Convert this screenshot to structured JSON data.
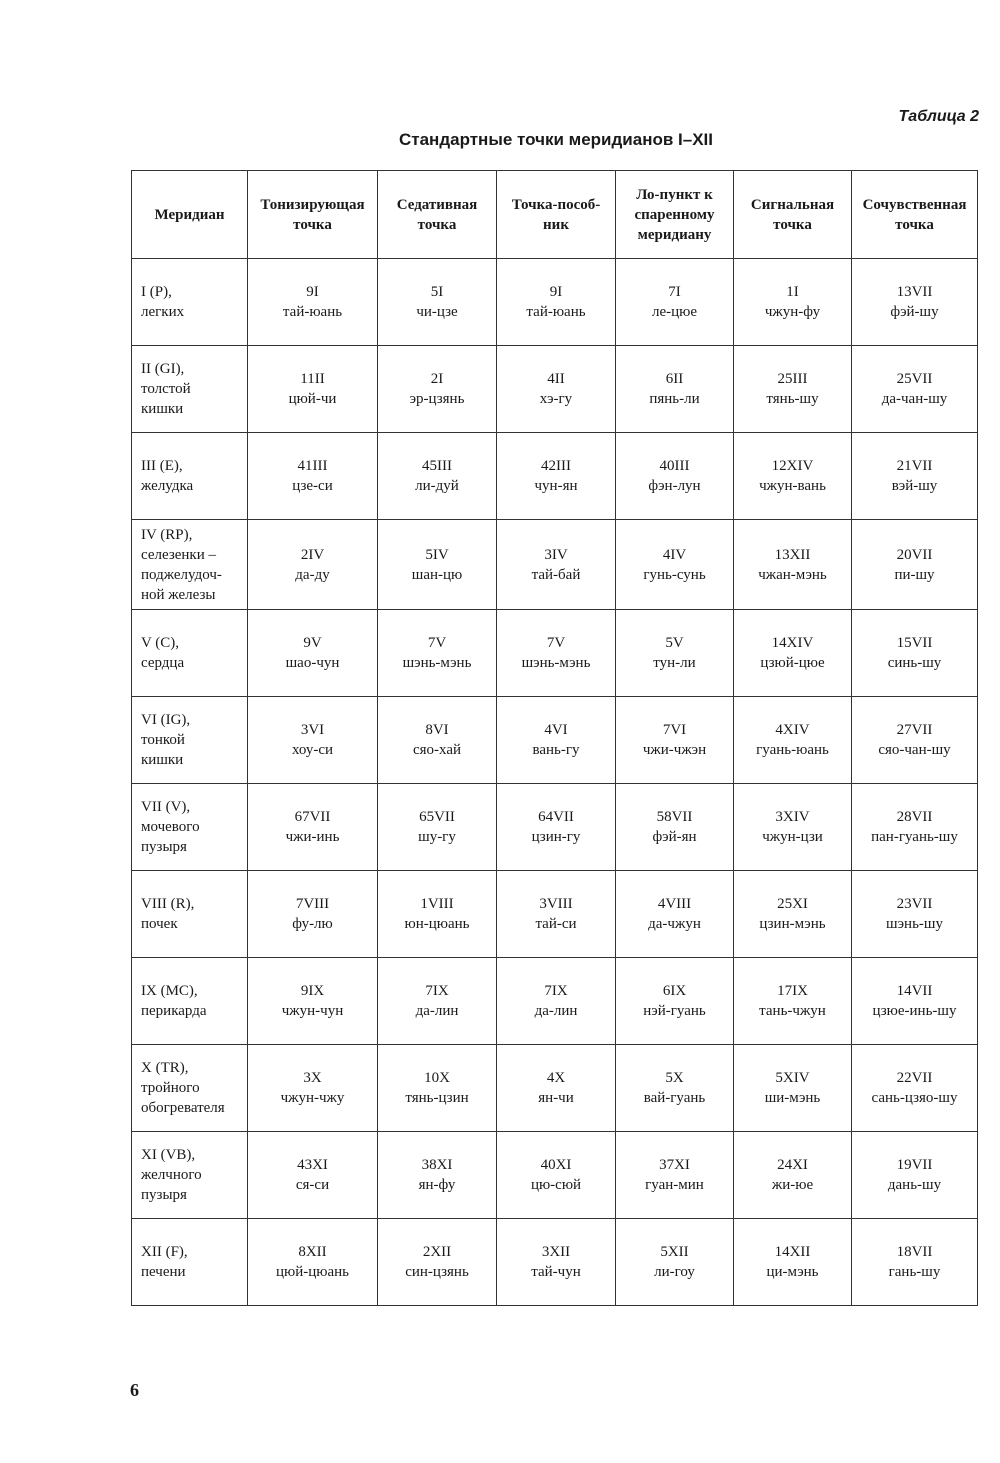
{
  "table_label": "Таблица 2",
  "title": "Стандартные точки меридианов I–XII",
  "columns": [
    "Меридиан",
    "Тонизирующая точка",
    "Седативная точка",
    "Точка-пособ-ник",
    "Ло-пункт к спаренному меридиану",
    "Сигнальная точка",
    "Сочувственная точка"
  ],
  "rows": [
    {
      "meridian": "I (P),\nлегких",
      "cells": [
        [
          "9I",
          "тай-юань"
        ],
        [
          "5I",
          "чи-цзе"
        ],
        [
          "9I",
          "тай-юань"
        ],
        [
          "7I",
          "ле-цюе"
        ],
        [
          "1I",
          "чжун-фу"
        ],
        [
          "13VII",
          "фэй-шу"
        ]
      ]
    },
    {
      "meridian": "II (GI),\nтолстой\nкишки",
      "cells": [
        [
          "11II",
          "цюй-чи"
        ],
        [
          "2I",
          "эр-цзянь"
        ],
        [
          "4II",
          "хэ-гу"
        ],
        [
          "6II",
          "пянь-ли"
        ],
        [
          "25III",
          "тянь-шу"
        ],
        [
          "25VII",
          "да-чан-шу"
        ]
      ]
    },
    {
      "meridian": "III (E),\nжелудка",
      "cells": [
        [
          "41III",
          "цзе-си"
        ],
        [
          "45III",
          "ли-дуй"
        ],
        [
          "42III",
          "чун-ян"
        ],
        [
          "40III",
          "фэн-лун"
        ],
        [
          "12XIV",
          "чжун-вань"
        ],
        [
          "21VII",
          "вэй-шу"
        ]
      ]
    },
    {
      "meridian": "IV (RP),\nселезенки –\nподжелудоч-\nной железы",
      "cells": [
        [
          "2IV",
          "да-ду"
        ],
        [
          "5IV",
          "шан-цю"
        ],
        [
          "3IV",
          "тай-бай"
        ],
        [
          "4IV",
          "гунь-сунь"
        ],
        [
          "13XII",
          "чжан-мэнь"
        ],
        [
          "20VII",
          "пи-шу"
        ]
      ]
    },
    {
      "meridian": "V (C),\nсердца",
      "cells": [
        [
          "9V",
          "шао-чун"
        ],
        [
          "7V",
          "шэнь-мэнь"
        ],
        [
          "7V",
          "шэнь-мэнь"
        ],
        [
          "5V",
          "тун-ли"
        ],
        [
          "14XIV",
          "цзюй-цюе"
        ],
        [
          "15VII",
          "синь-шу"
        ]
      ]
    },
    {
      "meridian": "VI (IG),\nтонкой\nкишки",
      "cells": [
        [
          "3VI",
          "хоу-си"
        ],
        [
          "8VI",
          "сяо-хай"
        ],
        [
          "4VI",
          "вань-гу"
        ],
        [
          "7VI",
          "чжи-чжэн"
        ],
        [
          "4XIV",
          "гуань-юань"
        ],
        [
          "27VII",
          "сяо-чан-шу"
        ]
      ]
    },
    {
      "meridian": "VII (V),\nмочевого\nпузыря",
      "cells": [
        [
          "67VII",
          "чжи-инь"
        ],
        [
          "65VII",
          "шу-гу"
        ],
        [
          "64VII",
          "цзин-гу"
        ],
        [
          "58VII",
          "фэй-ян"
        ],
        [
          "3XIV",
          "чжун-цзи"
        ],
        [
          "28VII",
          "пан-гуань-шу"
        ]
      ]
    },
    {
      "meridian": "VIII (R),\nпочек",
      "cells": [
        [
          "7VIII",
          "фу-лю"
        ],
        [
          "1VIII",
          "юн-цюань"
        ],
        [
          "3VIII",
          "тай-си"
        ],
        [
          "4VIII",
          "да-чжун"
        ],
        [
          "25XI",
          "цзин-мэнь"
        ],
        [
          "23VII",
          "шэнь-шу"
        ]
      ]
    },
    {
      "meridian": "IX (MC),\nперикарда",
      "cells": [
        [
          "9IX",
          "чжун-чун"
        ],
        [
          "7IX",
          "да-лин"
        ],
        [
          "7IX",
          "да-лин"
        ],
        [
          "6IX",
          "нэй-гуань"
        ],
        [
          "17IX",
          "тань-чжун"
        ],
        [
          "14VII",
          "цзюе-инь-шу"
        ]
      ]
    },
    {
      "meridian": "X (TR),\nтройного\nобогревателя",
      "cells": [
        [
          "3X",
          "чжун-чжу"
        ],
        [
          "10X",
          "тянь-цзин"
        ],
        [
          "4X",
          "ян-чи"
        ],
        [
          "5X",
          "вай-гуань"
        ],
        [
          "5XIV",
          "ши-мэнь"
        ],
        [
          "22VII",
          "сань-цзяо-шу"
        ]
      ]
    },
    {
      "meridian": "XI (VB),\nжелчного\nпузыря",
      "cells": [
        [
          "43XI",
          "ся-си"
        ],
        [
          "38XI",
          "ян-фу"
        ],
        [
          "40XI",
          "цю-сюй"
        ],
        [
          "37XI",
          "гуан-мин"
        ],
        [
          "24XI",
          "жи-юе"
        ],
        [
          "19VII",
          "дань-шу"
        ]
      ]
    },
    {
      "meridian": "XII (F),\nпечени",
      "cells": [
        [
          "8XII",
          "цюй-цюань"
        ],
        [
          "2XII",
          "син-цзянь"
        ],
        [
          "3XII",
          "тай-чун"
        ],
        [
          "5XII",
          "ли-гоу"
        ],
        [
          "14XII",
          "ци-мэнь"
        ],
        [
          "18VII",
          "гань-шу"
        ]
      ]
    }
  ],
  "page_number": "6"
}
